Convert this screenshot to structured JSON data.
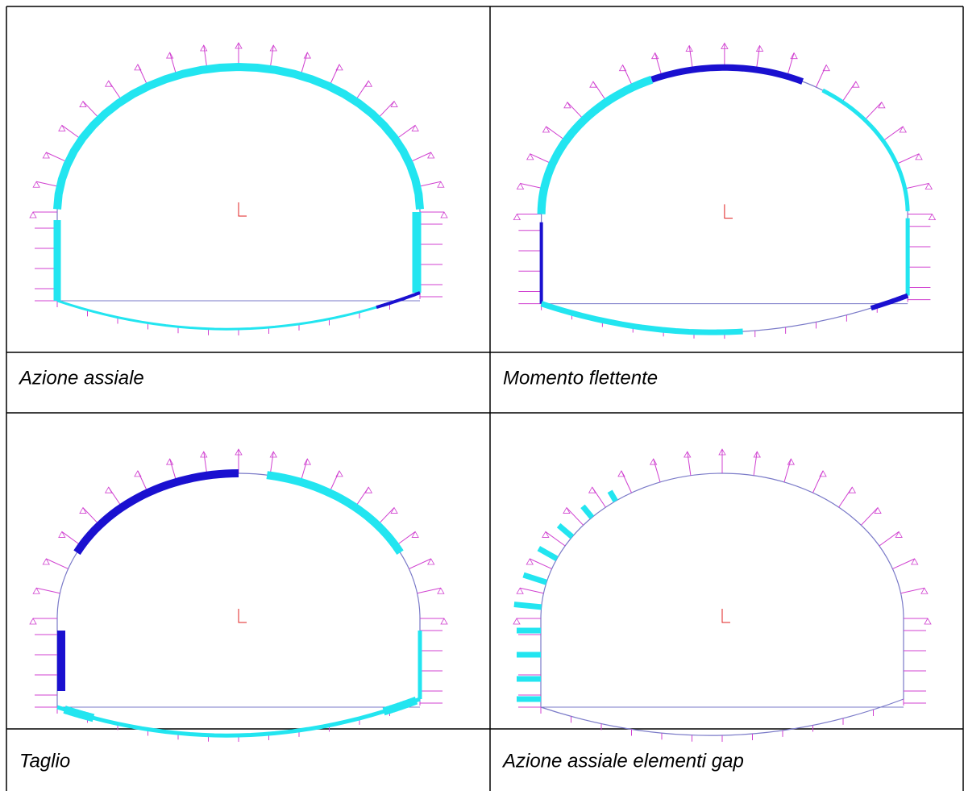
{
  "captions": [
    "Azione assiale",
    "Momento flettente",
    "Taglio",
    "Azione assiale elementi gap"
  ]
}
